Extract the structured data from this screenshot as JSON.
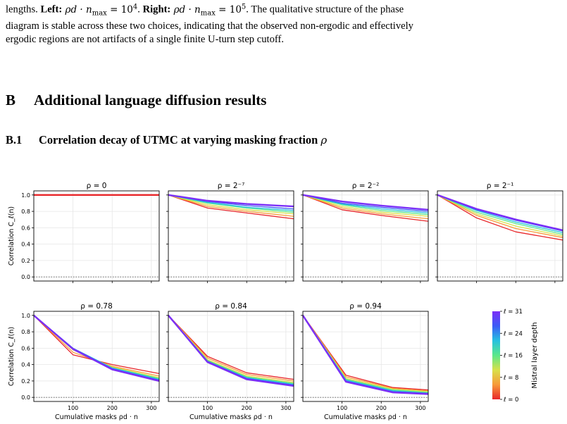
{
  "paragraph": {
    "line1": {
      "t0": "lengths. ",
      "left_label": "Left:",
      "left_math": " ρd · n",
      "left_sub": "max",
      "left_eq": " = 10",
      "left_exp": "4",
      "t1": ". ",
      "right_label": "Right:",
      "right_math": " ρd · n",
      "right_sub": "max",
      "right_eq": " = 10",
      "right_exp": "5",
      "t2": ". The qualitative structure of the phase"
    },
    "line2": "diagram is stable across these two choices, indicating that the observed non-ergodic and effectively",
    "line3": "ergodic regions are not artifacts of a single finite U-turn step cutoff."
  },
  "section": {
    "number": "B",
    "title": "Additional language diffusion results"
  },
  "subsection": {
    "number": "B.1",
    "title": "Correlation decay of UTMC at varying masking fraction ",
    "symbol": "ρ"
  },
  "figure": {
    "ylabel": "Correlation C_ℓ(n)",
    "xlabel": "Cumulative masks ρd · n",
    "colorbar": {
      "label": "Mistral layer depth",
      "ticks": [
        "ℓ = 31",
        "ℓ = 24",
        "ℓ = 16",
        "ℓ = 8",
        "ℓ = 0"
      ],
      "colors": [
        "#7b2ff7",
        "#3b5bf6",
        "#25c1e0",
        "#5ae88a",
        "#d8e04a",
        "#f79a3a",
        "#e8262a"
      ]
    }
  },
  "chart_data": [
    {
      "type": "line",
      "title": "ρ = 0",
      "xticks": [],
      "yticks": [
        "0.0",
        "0.2",
        "0.4",
        "0.6",
        "0.8",
        "1.0"
      ],
      "ylim": [
        -0.05,
        1.05
      ],
      "x": [
        0,
        320
      ],
      "series": [
        {
          "values": [
            1.0,
            1.0
          ]
        }
      ]
    },
    {
      "type": "line",
      "title": "ρ = 2⁻⁷",
      "xticks": [],
      "yticks": [],
      "ylim": [
        -0.05,
        1.05
      ],
      "x": [
        0,
        100,
        200,
        320
      ],
      "series": [
        {
          "values": [
            1.0,
            0.84,
            0.78,
            0.71
          ]
        },
        {
          "values": [
            1.0,
            0.86,
            0.8,
            0.74
          ]
        },
        {
          "values": [
            1.0,
            0.88,
            0.82,
            0.77
          ]
        },
        {
          "values": [
            1.0,
            0.9,
            0.84,
            0.79
          ]
        },
        {
          "values": [
            1.0,
            0.91,
            0.85,
            0.81
          ]
        },
        {
          "values": [
            1.0,
            0.92,
            0.87,
            0.83
          ]
        },
        {
          "values": [
            1.0,
            0.93,
            0.89,
            0.86
          ]
        }
      ]
    },
    {
      "type": "line",
      "title": "ρ = 2⁻²",
      "xticks": [],
      "yticks": [],
      "ylim": [
        -0.05,
        1.05
      ],
      "x": [
        0,
        100,
        200,
        320
      ],
      "series": [
        {
          "values": [
            1.0,
            0.82,
            0.75,
            0.68
          ]
        },
        {
          "values": [
            1.0,
            0.84,
            0.77,
            0.71
          ]
        },
        {
          "values": [
            1.0,
            0.86,
            0.79,
            0.74
          ]
        },
        {
          "values": [
            1.0,
            0.88,
            0.81,
            0.76
          ]
        },
        {
          "values": [
            1.0,
            0.89,
            0.83,
            0.78
          ]
        },
        {
          "values": [
            1.0,
            0.9,
            0.85,
            0.8
          ]
        },
        {
          "values": [
            1.0,
            0.92,
            0.87,
            0.82
          ]
        }
      ]
    },
    {
      "type": "line",
      "title": "ρ = 2⁻¹",
      "xticks": [],
      "yticks": [],
      "ylim": [
        -0.05,
        1.05
      ],
      "x": [
        0,
        100,
        200,
        320
      ],
      "series": [
        {
          "values": [
            1.0,
            0.72,
            0.55,
            0.45
          ]
        },
        {
          "values": [
            1.0,
            0.75,
            0.59,
            0.48
          ]
        },
        {
          "values": [
            1.0,
            0.77,
            0.62,
            0.5
          ]
        },
        {
          "values": [
            1.0,
            0.79,
            0.65,
            0.52
          ]
        },
        {
          "values": [
            1.0,
            0.81,
            0.67,
            0.54
          ]
        },
        {
          "values": [
            1.0,
            0.82,
            0.69,
            0.56
          ]
        },
        {
          "values": [
            1.0,
            0.83,
            0.7,
            0.57
          ]
        }
      ]
    },
    {
      "type": "line",
      "title": "ρ = 0.78",
      "xticks": [
        "100",
        "200",
        "300"
      ],
      "yticks": [
        "0.0",
        "0.2",
        "0.4",
        "0.6",
        "0.8",
        "1.0"
      ],
      "ylim": [
        -0.05,
        1.05
      ],
      "x": [
        0,
        100,
        200,
        320
      ],
      "series": [
        {
          "values": [
            1.0,
            0.52,
            0.4,
            0.29
          ]
        },
        {
          "values": [
            1.0,
            0.55,
            0.38,
            0.26
          ]
        },
        {
          "values": [
            1.0,
            0.58,
            0.37,
            0.24
          ]
        },
        {
          "values": [
            1.0,
            0.59,
            0.36,
            0.23
          ]
        },
        {
          "values": [
            1.0,
            0.6,
            0.36,
            0.22
          ]
        },
        {
          "values": [
            1.0,
            0.6,
            0.35,
            0.21
          ]
        },
        {
          "values": [
            1.0,
            0.59,
            0.34,
            0.2
          ]
        }
      ]
    },
    {
      "type": "line",
      "title": "ρ = 0.84",
      "xticks": [
        "100",
        "200",
        "300"
      ],
      "yticks": [],
      "ylim": [
        -0.05,
        1.05
      ],
      "x": [
        0,
        100,
        200,
        320
      ],
      "series": [
        {
          "values": [
            1.0,
            0.5,
            0.3,
            0.22
          ]
        },
        {
          "values": [
            1.0,
            0.48,
            0.28,
            0.2
          ]
        },
        {
          "values": [
            1.0,
            0.46,
            0.26,
            0.18
          ]
        },
        {
          "values": [
            1.0,
            0.45,
            0.25,
            0.17
          ]
        },
        {
          "values": [
            1.0,
            0.44,
            0.24,
            0.16
          ]
        },
        {
          "values": [
            1.0,
            0.44,
            0.23,
            0.15
          ]
        },
        {
          "values": [
            1.0,
            0.43,
            0.22,
            0.14
          ]
        }
      ]
    },
    {
      "type": "line",
      "title": "ρ = 0.94",
      "xticks": [
        "100",
        "200",
        "300"
      ],
      "yticks": [],
      "ylim": [
        -0.05,
        1.05
      ],
      "x": [
        0,
        110,
        230,
        320
      ],
      "series": [
        {
          "values": [
            1.0,
            0.27,
            0.12,
            0.09
          ]
        },
        {
          "values": [
            1.0,
            0.25,
            0.11,
            0.08
          ]
        },
        {
          "values": [
            1.0,
            0.23,
            0.1,
            0.07
          ]
        },
        {
          "values": [
            1.0,
            0.22,
            0.09,
            0.06
          ]
        },
        {
          "values": [
            1.0,
            0.21,
            0.08,
            0.05
          ]
        },
        {
          "values": [
            1.0,
            0.2,
            0.07,
            0.05
          ]
        },
        {
          "values": [
            1.0,
            0.19,
            0.06,
            0.04
          ]
        }
      ]
    }
  ]
}
